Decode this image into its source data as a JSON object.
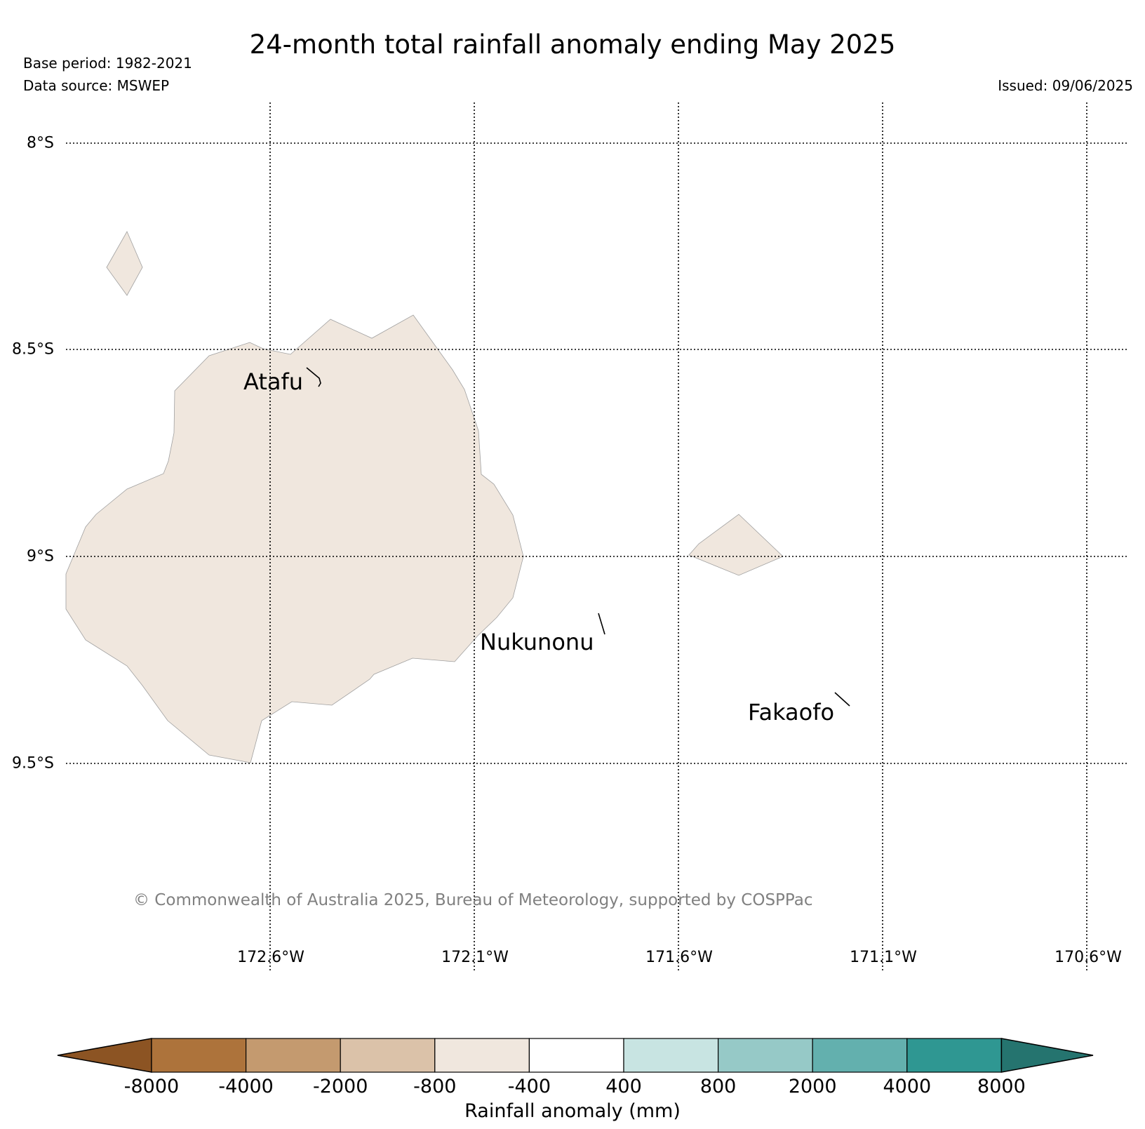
{
  "header": {
    "title": "24-month total rainfall anomaly ending May 2025",
    "base_period": "Base period: 1982-2021",
    "data_source": "Data source: MSWEP",
    "issued": "Issued: 09/06/2025"
  },
  "map": {
    "lat_labels": [
      "8°S",
      "8.5°S",
      "9°S",
      "9.5°S"
    ],
    "lon_labels": [
      "172.6°W",
      "172.1°W",
      "171.6°W",
      "171.1°W",
      "170.6°W"
    ],
    "places": [
      "Atafu",
      "Nukunonu",
      "Fakaofo"
    ],
    "land_color": "#f0e7de",
    "gridline_style": "dotted",
    "copyright": "© Commonwealth of Australia 2025, Bureau of Meteorology, supported by COSPPac"
  },
  "colorbar": {
    "label": "Rainfall anomaly (mm)",
    "ticks": [
      "-8000",
      "-4000",
      "-2000",
      "-800",
      "-400",
      "400",
      "800",
      "2000",
      "4000",
      "8000"
    ],
    "colors": [
      "#8c5423",
      "#ad733b",
      "#c49a6f",
      "#dbc2a9",
      "#f0e7de",
      "#ffffff",
      "#c8e4e2",
      "#96c9c7",
      "#63b0ae",
      "#2f9792",
      "#25746f"
    ]
  }
}
